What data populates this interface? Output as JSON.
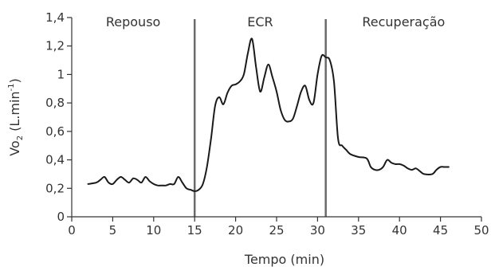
{
  "chart_data": {
    "type": "line",
    "xlabel": "Tempo (min)",
    "ylabel_main": "Vo",
    "ylabel_sub": "2",
    "ylabel_rest": " (L.min",
    "ylabel_sup": "-1",
    "ylabel_close": ")",
    "xlim": [
      0,
      50
    ],
    "ylim": [
      0,
      1.4
    ],
    "x_ticks": [
      0,
      5,
      10,
      15,
      20,
      25,
      30,
      35,
      40,
      45,
      50
    ],
    "x_tick_labels": [
      "0",
      "5",
      "10",
      "15",
      "20",
      "25",
      "30",
      "35",
      "40",
      "45",
      "50"
    ],
    "y_ticks": [
      0,
      0.2,
      0.4,
      0.6,
      0.8,
      1.0,
      1.2,
      1.4
    ],
    "y_tick_labels": [
      "0",
      "0,2",
      "0,4",
      "0,6",
      "0,8",
      "1",
      "1,2",
      "1,4"
    ],
    "phases": [
      {
        "label": "Repouso",
        "x_center": 7.5
      },
      {
        "label": "ECR",
        "x_center": 23
      },
      {
        "label": "Recuperação",
        "x_center": 40.5
      }
    ],
    "phase_boundaries": [
      15,
      31
    ],
    "grid": false,
    "series": [
      {
        "x": [
          2,
          3,
          3.5,
          4,
          4.5,
          5,
          5.5,
          6,
          6.5,
          7,
          7.5,
          8,
          8.5,
          9,
          9.5,
          10,
          10.5,
          11,
          11.5,
          12,
          12.5,
          13,
          13.5,
          14,
          14.5,
          15,
          15.5,
          16,
          16.5,
          17,
          17.5,
          18,
          18.5,
          19,
          19.5,
          20,
          20.5,
          21,
          21.5,
          22,
          22.5,
          23,
          23.5,
          24,
          24.5,
          25,
          25.5,
          26,
          26.5,
          27,
          27.5,
          28,
          28.5,
          29,
          29.5,
          30,
          30.5,
          31,
          31.5,
          32,
          32.5,
          33,
          33.5,
          34,
          35,
          36,
          36.5,
          37,
          37.5,
          38,
          38.5,
          39,
          39.5,
          40,
          40.5,
          41,
          41.5,
          42,
          42.5,
          43,
          44,
          44.5,
          45,
          45.5,
          46
        ],
        "y": [
          0.23,
          0.24,
          0.26,
          0.28,
          0.24,
          0.23,
          0.26,
          0.28,
          0.26,
          0.24,
          0.27,
          0.26,
          0.24,
          0.28,
          0.25,
          0.23,
          0.22,
          0.22,
          0.22,
          0.23,
          0.23,
          0.28,
          0.24,
          0.2,
          0.19,
          0.18,
          0.19,
          0.23,
          0.35,
          0.55,
          0.78,
          0.84,
          0.79,
          0.87,
          0.92,
          0.93,
          0.95,
          1.0,
          1.15,
          1.25,
          1.05,
          0.88,
          0.98,
          1.07,
          0.98,
          0.88,
          0.75,
          0.68,
          0.67,
          0.69,
          0.78,
          0.88,
          0.92,
          0.82,
          0.8,
          1.0,
          1.13,
          1.12,
          1.1,
          0.95,
          0.55,
          0.5,
          0.47,
          0.44,
          0.42,
          0.41,
          0.35,
          0.33,
          0.33,
          0.35,
          0.4,
          0.38,
          0.37,
          0.37,
          0.36,
          0.34,
          0.33,
          0.34,
          0.32,
          0.3,
          0.3,
          0.33,
          0.35,
          0.35,
          0.35
        ]
      }
    ]
  }
}
